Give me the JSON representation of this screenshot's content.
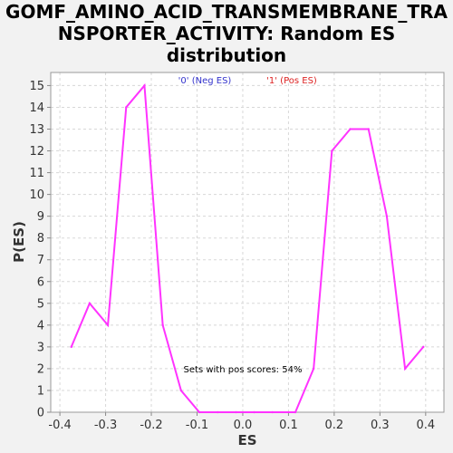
{
  "chart_data": {
    "type": "line",
    "title_lines": [
      "GOMF_AMINO_ACID_TRANSMEMBRANE_TRA",
      "NSPORTER_ACTIVITY: Random ES",
      "distribution"
    ],
    "xlabel": "ES",
    "ylabel": "P(ES)",
    "xlim": [
      -0.42,
      0.44
    ],
    "ylim": [
      0,
      15.6
    ],
    "x_ticks": [
      -0.4,
      -0.3,
      -0.2,
      -0.1,
      0.0,
      0.1,
      0.2,
      0.3,
      0.4
    ],
    "x_tick_labels": [
      "-0.4",
      "-0.3",
      "-0.2",
      "-0.1",
      "0.0",
      "0.1",
      "0.2",
      "0.3",
      "0.4"
    ],
    "y_ticks": [
      0,
      1,
      2,
      3,
      4,
      5,
      6,
      7,
      8,
      9,
      10,
      11,
      12,
      13,
      14,
      15
    ],
    "y_tick_labels": [
      "0",
      "1",
      "2",
      "3",
      "4",
      "5",
      "6",
      "7",
      "8",
      "9",
      "10",
      "11",
      "12",
      "13",
      "14",
      "15"
    ],
    "grid": true,
    "legend_placement": "top-center",
    "legend": [
      {
        "label": "'0' (Neg ES)",
        "color": "#3333cc"
      },
      {
        "label": "'1' (Pos ES)",
        "color": "#dd2222"
      }
    ],
    "annotation": "Sets with pos scores: 54%",
    "series": [
      {
        "color": "#ff33ff",
        "x": [
          -0.375,
          -0.335,
          -0.295,
          -0.255,
          -0.215,
          -0.175,
          -0.135,
          -0.095,
          -0.055,
          -0.015,
          0.025,
          0.065,
          0.115,
          0.155,
          0.195,
          0.235,
          0.275,
          0.315,
          0.355,
          0.395
        ],
        "values": [
          3,
          5,
          4,
          14,
          15,
          4,
          1,
          0,
          0,
          0,
          0,
          0,
          0,
          2,
          12,
          13,
          13,
          9,
          2,
          3
        ]
      }
    ]
  }
}
